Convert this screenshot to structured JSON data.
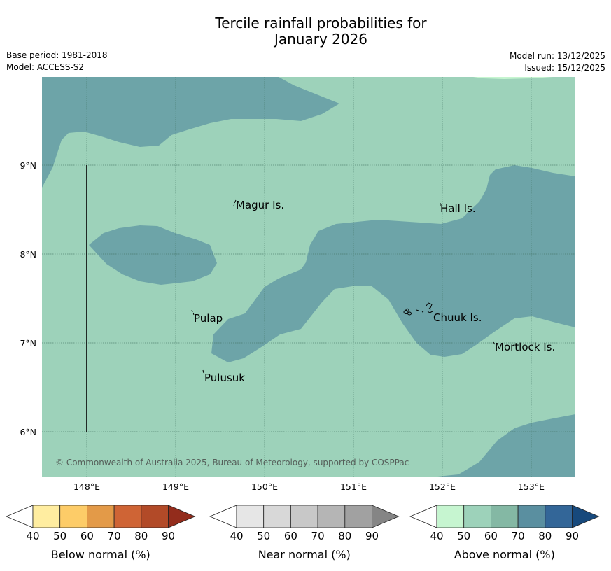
{
  "title": {
    "line1": "Tercile rainfall probabilities for",
    "line2": "January 2026"
  },
  "meta": {
    "base_period": "Base period: 1981-2018",
    "model": "Model: ACCESS-S2",
    "model_run": "Model run: 13/12/2025",
    "issued": "Issued: 15/12/2025"
  },
  "map": {
    "lat_labels": [
      "9°N",
      "8°N",
      "7°N",
      "6°N"
    ],
    "lon_labels": [
      "148°E",
      "149°E",
      "150°E",
      "151°E",
      "152°E",
      "153°E"
    ],
    "places": [
      "Magur Is.",
      "Hall Is.",
      "Pulap",
      "Chuuk Is.",
      "Mortlock Is.",
      "Pulusuk"
    ],
    "copyright": "© Commonwealth of Australia 2025, Bureau of Meteorology, supported by COSPPac",
    "colors": {
      "background": "#9dd2ba",
      "above_70": "#6da4a8",
      "above_50_light": "#c6f5d0"
    }
  },
  "legends": [
    {
      "label": "Below normal (%)",
      "ticks": [
        "40",
        "50",
        "60",
        "70",
        "80",
        "90"
      ],
      "colors": [
        "#ffffff",
        "#ffeda0",
        "#fdcc68",
        "#e39a48",
        "#cf6435",
        "#b24a28",
        "#932c1c"
      ]
    },
    {
      "label": "Near normal (%)",
      "ticks": [
        "40",
        "50",
        "60",
        "70",
        "80",
        "90"
      ],
      "colors": [
        "#ffffff",
        "#e6e6e6",
        "#d8d8d8",
        "#c8c8c8",
        "#b5b5b5",
        "#a1a1a1",
        "#858585"
      ]
    },
    {
      "label": "Above normal (%)",
      "ticks": [
        "40",
        "50",
        "60",
        "70",
        "80",
        "90"
      ],
      "colors": [
        "#ffffff",
        "#c6f5d0",
        "#9dd2ba",
        "#84b8a4",
        "#5a8fa0",
        "#336698",
        "#17497c"
      ]
    }
  ]
}
